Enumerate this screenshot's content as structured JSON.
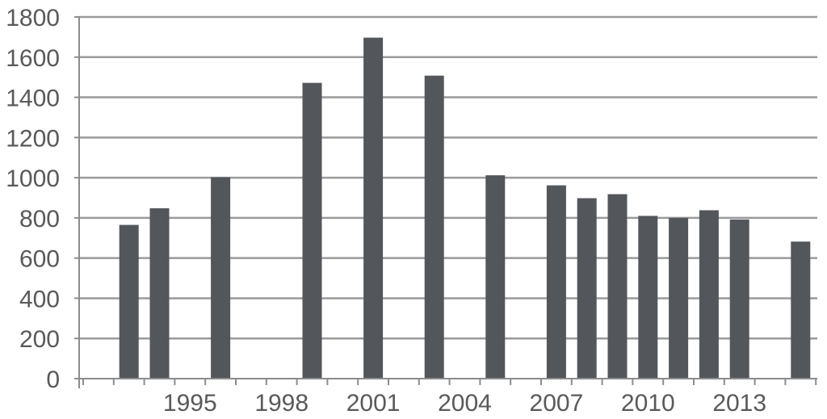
{
  "chart_data": {
    "type": "bar",
    "x": [
      1993,
      1994,
      1995,
      1996,
      1997,
      1998,
      1999,
      2000,
      2001,
      2002,
      2003,
      2004,
      2005,
      2006,
      2007,
      2008,
      2009,
      2010,
      2011,
      2012,
      2013,
      2014,
      2015
    ],
    "values": [
      765,
      848,
      null,
      1002,
      null,
      null,
      1472,
      null,
      1697,
      null,
      1508,
      null,
      1012,
      null,
      962,
      898,
      918,
      810,
      800,
      838,
      792,
      null,
      682
    ],
    "x_tick_labels": [
      "1995",
      "1998",
      "2001",
      "2004",
      "2007",
      "2010",
      "2013"
    ],
    "y_tick_labels": [
      "0",
      "200",
      "400",
      "600",
      "800",
      "1000",
      "1200",
      "1400",
      "1600",
      "1800"
    ],
    "ylim": [
      0,
      1800
    ],
    "y_tick_step": 200,
    "title": "",
    "xlabel": "",
    "ylabel": "",
    "grid": true,
    "legend": "none",
    "bar_color": "#53565a"
  }
}
